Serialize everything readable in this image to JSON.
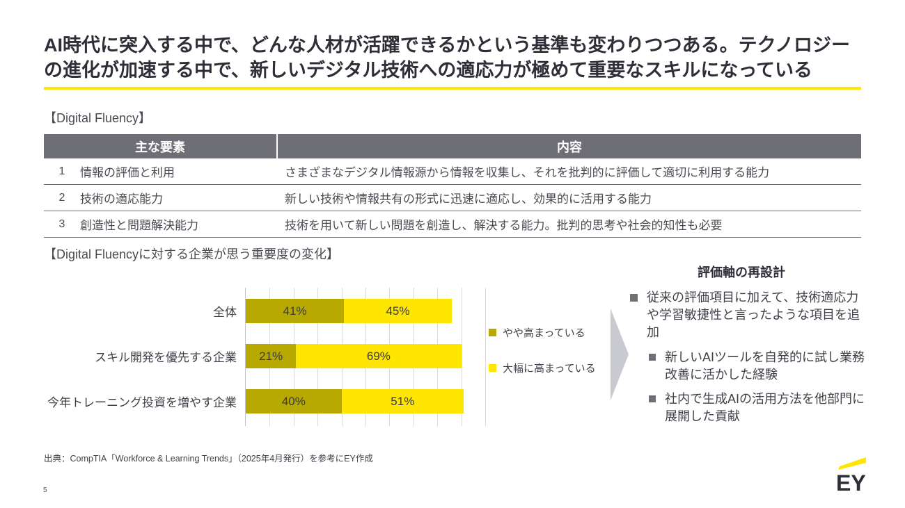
{
  "slide": {
    "title": "AI時代に突入する中で、どんな人材が活躍できるかという基準も変わりつつある。テクノロジーの進化が加速する中で、新しいデジタル技術への適応力が極めて重要なスキルになっている",
    "page_number": "5",
    "source": "出典：CompTIA「Workforce & Learning Trends」（2025年4月発行）を参考にEY作成",
    "logo_text": "EY"
  },
  "colors": {
    "accent_yellow": "#FFE600",
    "olive": "#B8A900",
    "dark_text": "#2E2E38",
    "table_header_bg": "#6D6E76",
    "arrow_grey": "#C9C9D1",
    "gridline": "#D9D9DE"
  },
  "fluency_section": {
    "label": "【Digital Fluency】",
    "table": {
      "headers": [
        "主な要素",
        "内容"
      ],
      "rows": [
        {
          "num": "1",
          "factor": "情報の評価と利用",
          "desc": "さまざまなデジタル情報源から情報を収集し、それを批判的に評価して適切に利用する能力"
        },
        {
          "num": "2",
          "factor": "技術の適応能力",
          "desc": "新しい技術や情報共有の形式に迅速に適応し、効果的に活用する能力"
        },
        {
          "num": "3",
          "factor": "創造性と問題解決能力",
          "desc": "技術を用いて新しい問題を創造し、解決する能力。批判的思考や社会的知性も必要"
        }
      ]
    }
  },
  "chart_section": {
    "label": "【Digital Fluencyに対する企業が思う重要度の変化】"
  },
  "chart_data": {
    "type": "bar",
    "orientation": "horizontal",
    "stacked": true,
    "categories": [
      "全体",
      "スキル開発を優先する企業",
      "今年トレーニング投資を増やす企業"
    ],
    "series": [
      {
        "name": "やや高まっている",
        "color": "#B8A900",
        "values": [
          41,
          21,
          40
        ]
      },
      {
        "name": "大幅に高まっている",
        "color": "#FFE600",
        "values": [
          45,
          69,
          51
        ]
      }
    ],
    "value_suffix": "%",
    "xlim": [
      0,
      100
    ],
    "gridline_step": 10,
    "grid": true,
    "legend_position": "right",
    "data_labels": true
  },
  "right_panel": {
    "heading": "評価軸の再設計",
    "bullets": [
      {
        "level": 1,
        "text": "従来の評価項目に加えて、技術適応力や学習敏捷性と言ったような項目を追加"
      },
      {
        "level": 2,
        "text": "新しいAIツールを自発的に試し業務改善に活かした経験"
      },
      {
        "level": 2,
        "text": "社内で生成AIの活用方法を他部門に展開した貢献"
      }
    ]
  }
}
